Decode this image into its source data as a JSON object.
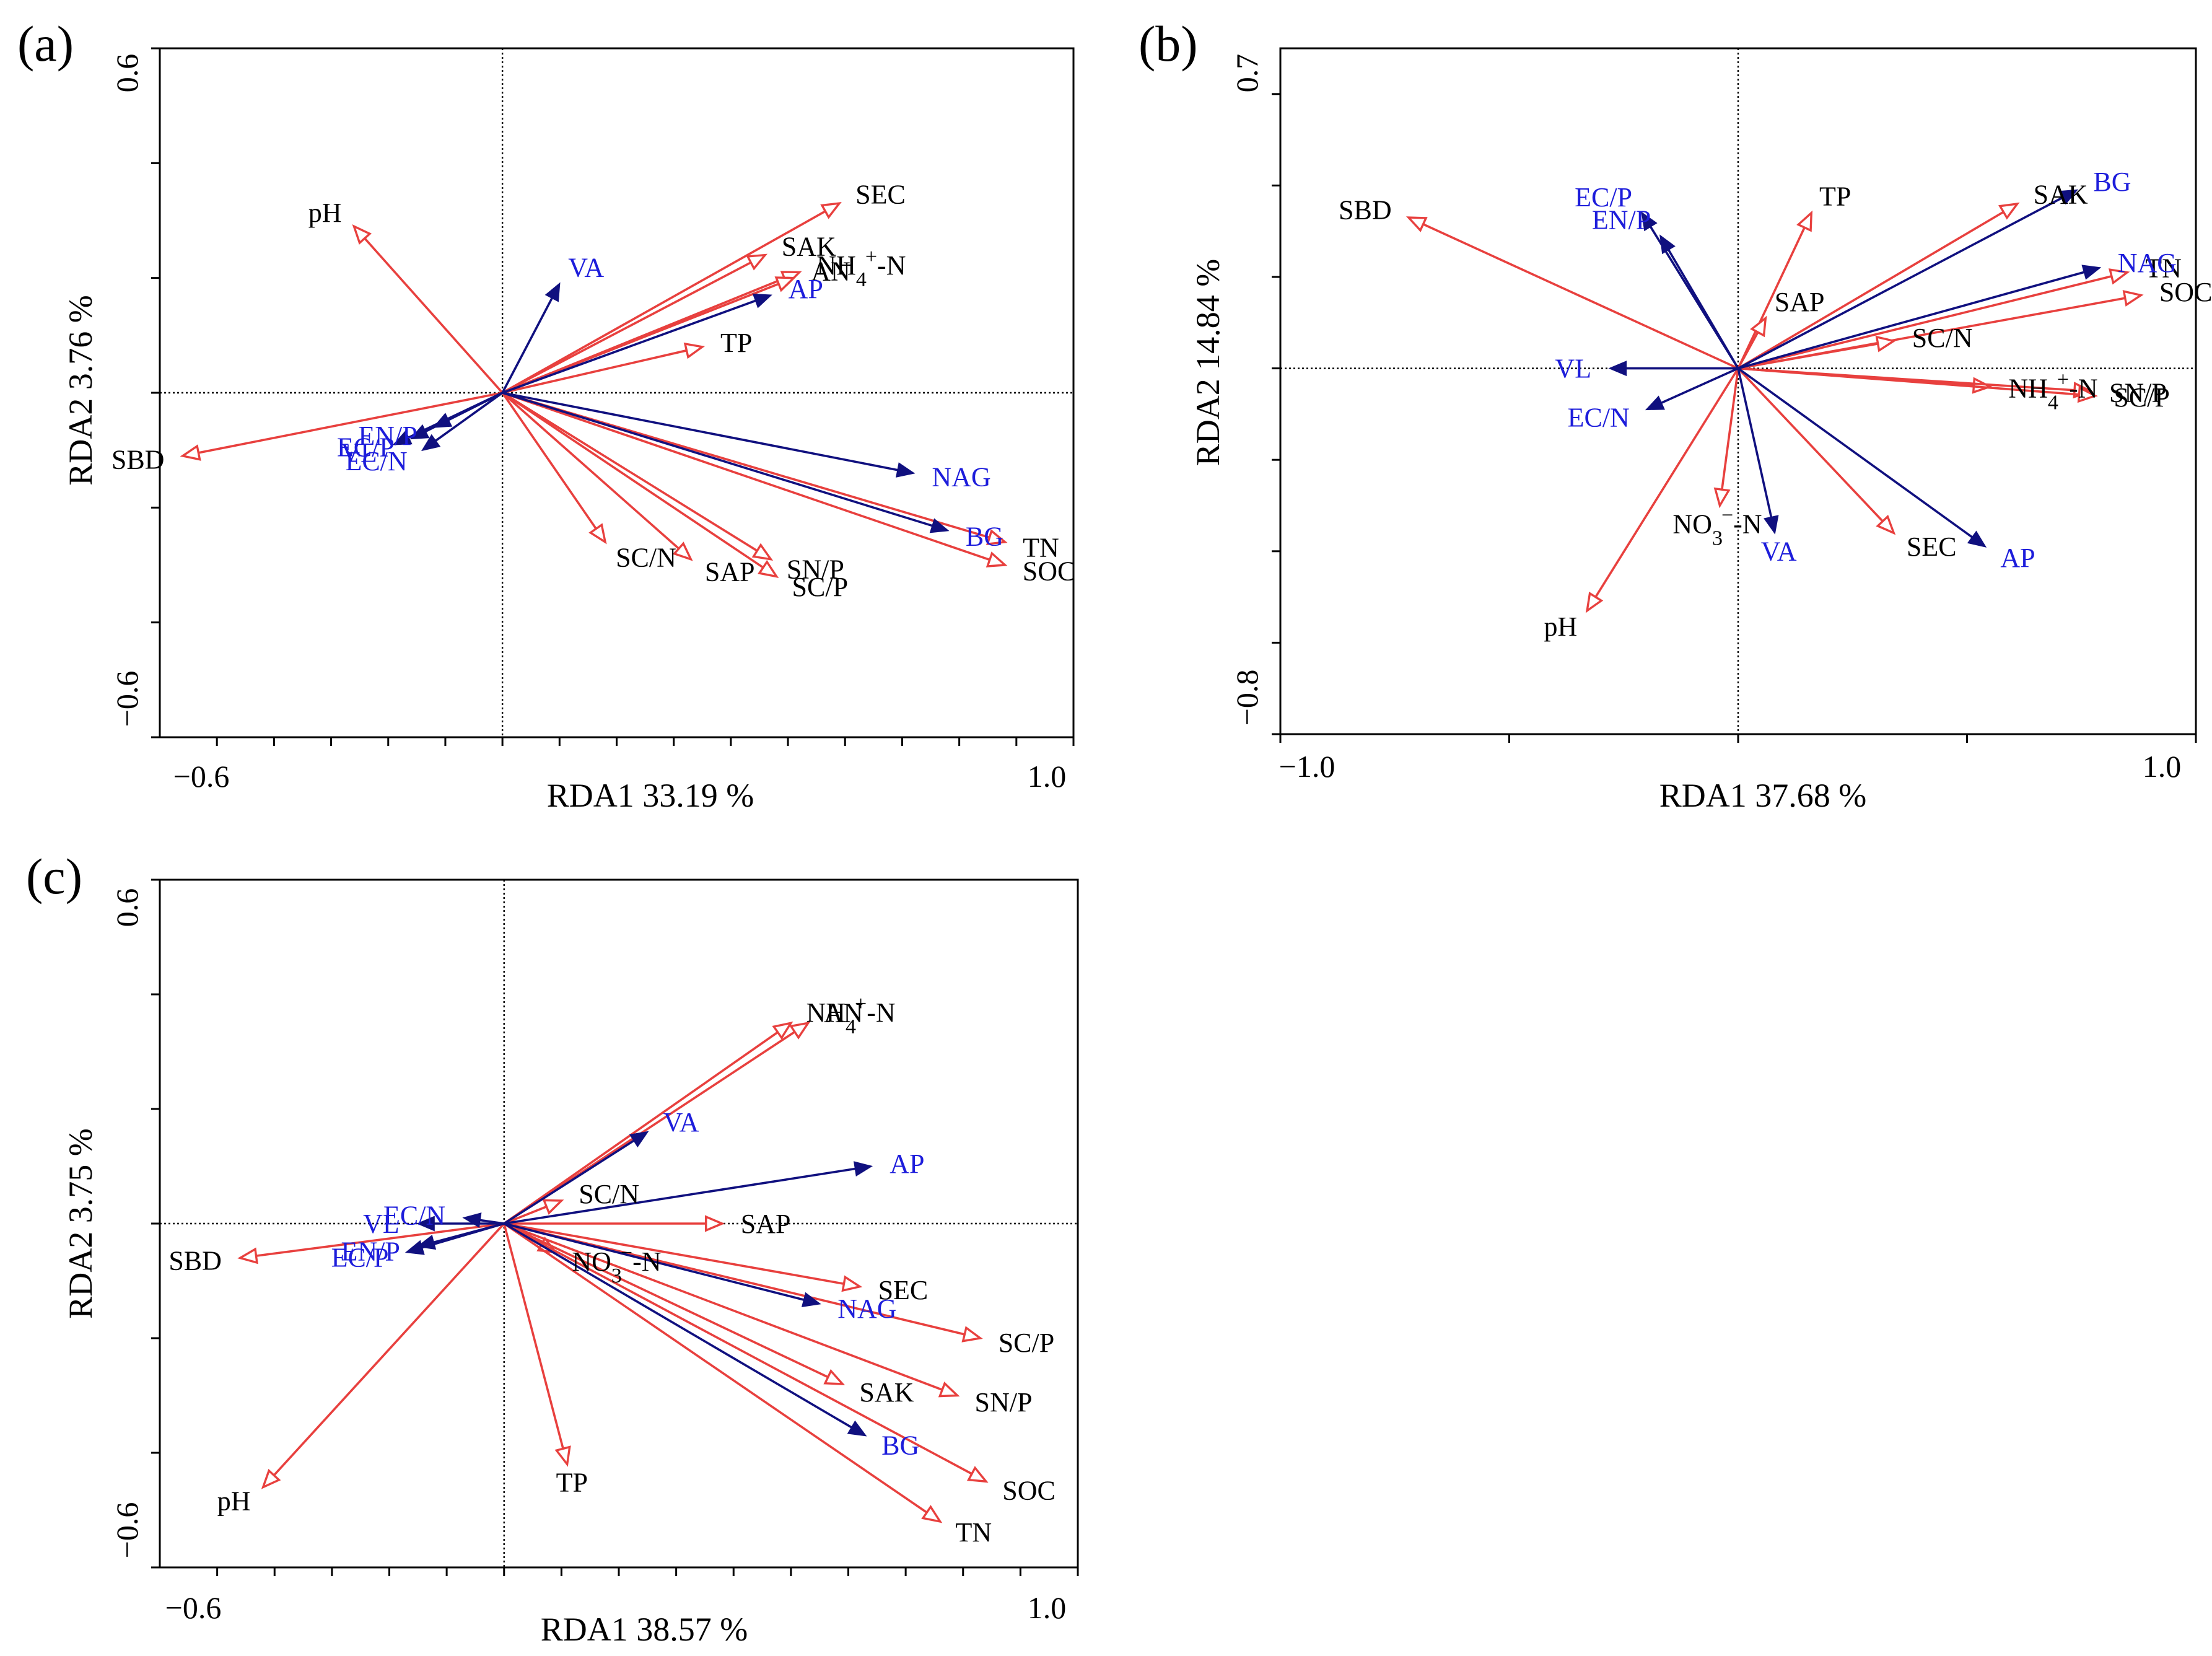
{
  "colors": {
    "environment": "#e8403e",
    "enzyme": "#10107f",
    "enzyme_label": "#1d1ddb",
    "axis": "#000000"
  },
  "chart_data": [
    {
      "type": "scatter",
      "subtype": "rda-biplot",
      "panel_label": "(a)",
      "xlabel": "RDA1 33.19 %",
      "ylabel": "RDA2 3.76 %",
      "xlim": [
        -0.6,
        1.0
      ],
      "ylim": [
        -0.6,
        0.6
      ],
      "x_tick_labels": [
        "−0.6",
        "1.0"
      ],
      "y_tick_labels": [
        "0.6",
        "−0.6"
      ],
      "x_ticks": [
        -0.5,
        -0.4,
        -0.3,
        -0.2,
        -0.1,
        0,
        0.1,
        0.2,
        0.3,
        0.4,
        0.5,
        0.6,
        0.7,
        0.8,
        0.9,
        1.0
      ],
      "y_ticks": [
        -0.6,
        -0.4,
        -0.2,
        0,
        0.2,
        0.4,
        0.6
      ],
      "vectors": [
        {
          "name": "pH",
          "label": "pH",
          "group": "environment",
          "x": -0.26,
          "y": 0.29
        },
        {
          "name": "SBD",
          "label": "SBD",
          "group": "environment",
          "x": -0.56,
          "y": -0.11
        },
        {
          "name": "SEC",
          "label": "SEC",
          "group": "environment",
          "x": 0.59,
          "y": 0.33
        },
        {
          "name": "SAK",
          "label": "SAK",
          "group": "environment",
          "x": 0.46,
          "y": 0.24
        },
        {
          "name": "NH4-N",
          "label": "NH4+-N",
          "group": "environment",
          "x": 0.52,
          "y": 0.21,
          "label_base": "NH",
          "label_sub": "4",
          "label_sup": "+",
          "label_tail": "-N"
        },
        {
          "name": "AN",
          "label": "AN",
          "group": "environment",
          "x": 0.51,
          "y": 0.2
        },
        {
          "name": "TP",
          "label": "TP",
          "group": "environment",
          "x": 0.35,
          "y": 0.08
        },
        {
          "name": "SC/N",
          "label": "SC/N",
          "group": "environment",
          "x": 0.18,
          "y": -0.26
        },
        {
          "name": "SAP",
          "label": "SAP",
          "group": "environment",
          "x": 0.33,
          "y": -0.29
        },
        {
          "name": "SN/P",
          "label": "SN/P",
          "group": "environment",
          "x": 0.47,
          "y": -0.29
        },
        {
          "name": "SC/P",
          "label": "SC/P",
          "group": "environment",
          "x": 0.48,
          "y": -0.32
        },
        {
          "name": "TN",
          "label": "TN",
          "group": "environment",
          "x": 0.88,
          "y": -0.26
        },
        {
          "name": "SOC",
          "label": "SOC",
          "group": "environment",
          "x": 0.88,
          "y": -0.3
        },
        {
          "name": "VA",
          "label": "VA",
          "group": "enzyme",
          "x": 0.1,
          "y": 0.19
        },
        {
          "name": "AP",
          "label": "AP",
          "group": "enzyme",
          "x": 0.47,
          "y": 0.17
        },
        {
          "name": "NAG",
          "label": "NAG",
          "group": "enzyme",
          "x": 0.72,
          "y": -0.14
        },
        {
          "name": "BG",
          "label": "BG",
          "group": "enzyme",
          "x": 0.78,
          "y": -0.24
        },
        {
          "name": "EN/P",
          "label": "EN/P",
          "group": "enzyme",
          "x": -0.12,
          "y": -0.06
        },
        {
          "name": "VL",
          "label": "VL",
          "group": "enzyme",
          "x": -0.19,
          "y": -0.09
        },
        {
          "name": "EC/P",
          "label": "EC/P",
          "group": "enzyme",
          "x": -0.16,
          "y": -0.08
        },
        {
          "name": "EC/N",
          "label": "EC/N",
          "group": "enzyme",
          "x": -0.14,
          "y": -0.1
        }
      ]
    },
    {
      "type": "scatter",
      "subtype": "rda-biplot",
      "panel_label": "(b)",
      "xlabel": "RDA1 37.68 %",
      "ylabel": "RDA2 14.84  %",
      "xlim": [
        -1.0,
        1.0
      ],
      "ylim": [
        -0.8,
        0.7
      ],
      "x_tick_labels": [
        "−1.0",
        "1.0"
      ],
      "y_tick_labels": [
        "0.7",
        "−0.8"
      ],
      "x_ticks": [
        -1.0,
        -0.5,
        0,
        0.5,
        1.0
      ],
      "y_ticks": [
        -0.8,
        -0.6,
        -0.4,
        -0.2,
        0,
        0.2,
        0.4,
        0.6
      ],
      "vectors": [
        {
          "name": "SBD",
          "label": "SBD",
          "group": "environment",
          "x": -0.72,
          "y": 0.33
        },
        {
          "name": "TP",
          "label": "TP",
          "group": "environment",
          "x": 0.16,
          "y": 0.34
        },
        {
          "name": "SAP",
          "label": "SAP",
          "group": "environment",
          "x": 0.06,
          "y": 0.11
        },
        {
          "name": "SAK",
          "label": "SAK",
          "group": "environment",
          "x": 0.61,
          "y": 0.36
        },
        {
          "name": "TN",
          "label": "TN",
          "group": "environment",
          "x": 0.85,
          "y": 0.21
        },
        {
          "name": "SOC",
          "label": "SOC",
          "group": "environment",
          "x": 0.88,
          "y": 0.16
        },
        {
          "name": "SC/N",
          "label": "SC/N",
          "group": "environment",
          "x": 0.34,
          "y": 0.06
        },
        {
          "name": "NH4-N",
          "label": "NH4+-N",
          "group": "environment",
          "x": 0.55,
          "y": -0.04,
          "label_base": "NH",
          "label_sub": "4",
          "label_sup": "+",
          "label_tail": "-N"
        },
        {
          "name": "SN/P",
          "label": "SN/P",
          "group": "environment",
          "x": 0.77,
          "y": -0.05
        },
        {
          "name": "SC/P",
          "label": "SC/P",
          "group": "environment",
          "x": 0.78,
          "y": -0.06
        },
        {
          "name": "NO3-N",
          "label": "NO3−-N",
          "group": "environment",
          "x": -0.04,
          "y": -0.3,
          "label_base": "NO",
          "label_sub": "3",
          "label_sup": "−",
          "label_tail": "-N"
        },
        {
          "name": "SEC",
          "label": "SEC",
          "group": "environment",
          "x": 0.34,
          "y": -0.36
        },
        {
          "name": "pH",
          "label": "pH",
          "group": "environment",
          "x": -0.33,
          "y": -0.53
        },
        {
          "name": "BG",
          "label": "BG",
          "group": "enzyme",
          "x": 0.74,
          "y": 0.39
        },
        {
          "name": "EC/P",
          "label": "EC/P",
          "group": "enzyme",
          "x": -0.21,
          "y": 0.34
        },
        {
          "name": "EN/P",
          "label": "EN/P",
          "group": "enzyme",
          "x": -0.17,
          "y": 0.29
        },
        {
          "name": "NAG",
          "label": "NAG",
          "group": "enzyme",
          "x": 0.79,
          "y": 0.22
        },
        {
          "name": "VL",
          "label": "VL",
          "group": "enzyme",
          "x": -0.28,
          "y": 0.0
        },
        {
          "name": "EC/N",
          "label": "EC/N",
          "group": "enzyme",
          "x": -0.2,
          "y": -0.09
        },
        {
          "name": "VA",
          "label": "VA",
          "group": "enzyme",
          "x": 0.08,
          "y": -0.36
        },
        {
          "name": "AP",
          "label": "AP",
          "group": "enzyme",
          "x": 0.54,
          "y": -0.39
        }
      ]
    },
    {
      "type": "scatter",
      "subtype": "rda-biplot",
      "panel_label": "(c)",
      "xlabel": "RDA1 38.57 %",
      "ylabel": "RDA2 3.75  %",
      "xlim": [
        -0.6,
        1.0
      ],
      "ylim": [
        -0.6,
        0.6
      ],
      "x_tick_labels": [
        "−0.6",
        "1.0"
      ],
      "y_tick_labels": [
        "0.6",
        "−0.6"
      ],
      "x_ticks": [
        -0.5,
        -0.4,
        -0.3,
        -0.2,
        -0.1,
        0,
        0.1,
        0.2,
        0.3,
        0.4,
        0.5,
        0.6,
        0.7,
        0.8,
        0.9,
        1.0
      ],
      "y_ticks": [
        -0.6,
        -0.4,
        -0.2,
        0,
        0.2,
        0.4,
        0.6
      ],
      "vectors": [
        {
          "name": "NH4-N",
          "label": "NH4+-N",
          "group": "environment",
          "x": 0.5,
          "y": 0.35,
          "label_base": "NH",
          "label_sub": "4",
          "label_sup": "+",
          "label_tail": "-N"
        },
        {
          "name": "AN",
          "label": "AN",
          "group": "environment",
          "x": 0.53,
          "y": 0.35
        },
        {
          "name": "SC/N",
          "label": "SC/N",
          "group": "environment",
          "x": 0.1,
          "y": 0.04
        },
        {
          "name": "SAP",
          "label": "SAP",
          "group": "environment",
          "x": 0.38,
          "y": 0.0
        },
        {
          "name": "SBD",
          "label": "SBD",
          "group": "environment",
          "x": -0.46,
          "y": -0.06
        },
        {
          "name": "pH",
          "label": "pH",
          "group": "environment",
          "x": -0.42,
          "y": -0.46
        },
        {
          "name": "NO3-N",
          "label": "NO3−-N",
          "group": "environment",
          "x": 0.09,
          "y": -0.05,
          "label_base": "NO",
          "label_sub": "3",
          "label_sup": "−",
          "label_tail": "-N"
        },
        {
          "name": "TP",
          "label": "TP",
          "group": "environment",
          "x": 0.11,
          "y": -0.42
        },
        {
          "name": "SEC",
          "label": "SEC",
          "group": "environment",
          "x": 0.62,
          "y": -0.11
        },
        {
          "name": "SC/P",
          "label": "SC/P",
          "group": "environment",
          "x": 0.83,
          "y": -0.2
        },
        {
          "name": "SAK",
          "label": "SAK",
          "group": "environment",
          "x": 0.59,
          "y": -0.28
        },
        {
          "name": "SN/P",
          "label": "SN/P",
          "group": "environment",
          "x": 0.79,
          "y": -0.3
        },
        {
          "name": "SOC",
          "label": "SOC",
          "group": "environment",
          "x": 0.84,
          "y": -0.45
        },
        {
          "name": "TN",
          "label": "TN",
          "group": "environment",
          "x": 0.76,
          "y": -0.52
        },
        {
          "name": "VA",
          "label": "VA",
          "group": "enzyme",
          "x": 0.25,
          "y": 0.16
        },
        {
          "name": "AP",
          "label": "AP",
          "group": "enzyme",
          "x": 0.64,
          "y": 0.1
        },
        {
          "name": "EC/N",
          "label": "EC/N",
          "group": "enzyme",
          "x": -0.07,
          "y": 0.01
        },
        {
          "name": "VL",
          "label": "VL",
          "group": "enzyme",
          "x": -0.15,
          "y": 0.0
        },
        {
          "name": "EC/P",
          "label": "EC/P",
          "group": "enzyme",
          "x": -0.17,
          "y": -0.05
        },
        {
          "name": "EN/P",
          "label": "EN/P",
          "group": "enzyme",
          "x": -0.15,
          "y": -0.04
        },
        {
          "name": "NAG",
          "label": "NAG",
          "group": "enzyme",
          "x": 0.55,
          "y": -0.14
        },
        {
          "name": "BG",
          "label": "BG",
          "group": "enzyme",
          "x": 0.63,
          "y": -0.37
        }
      ]
    }
  ]
}
